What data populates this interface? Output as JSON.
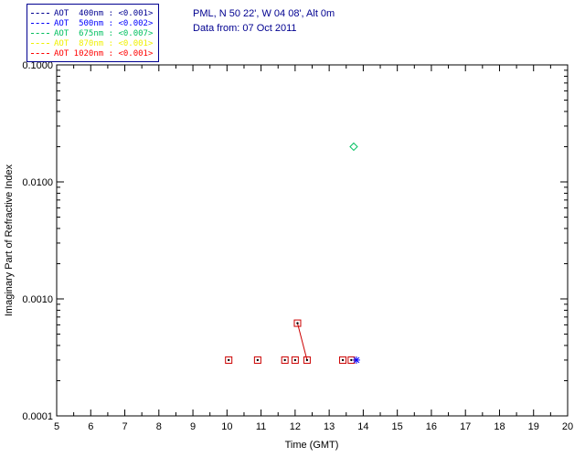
{
  "header": {
    "site_line": "PML, N 50 22', W 04 08', Alt 0m",
    "date_line": "Data from: 07 Oct 2011",
    "color": "#000090"
  },
  "legend": {
    "border_color": "#000090",
    "entries": [
      {
        "label": "AOT  400nm : <0.001>",
        "color": "#000090"
      },
      {
        "label": "AOT  500nm : <0.002>",
        "color": "#0000FF"
      },
      {
        "label": "AOT  675nm : <0.007>",
        "color": "#00C060"
      },
      {
        "label": "AOT  870nm : <0.001>",
        "color": "#F0F000"
      },
      {
        "label": "AOT 1020nm : <0.001>",
        "color": "#FF0000"
      }
    ]
  },
  "chart_data": {
    "type": "scatter",
    "title": "",
    "xlabel": "Time (GMT)",
    "ylabel": "Imaginary Part of Refractive Index",
    "x_range": [
      5,
      20
    ],
    "x_ticks": [
      5,
      6,
      7,
      8,
      9,
      10,
      11,
      12,
      13,
      14,
      15,
      16,
      17,
      18,
      19,
      20
    ],
    "y_scale": "log",
    "y_range": [
      0.0001,
      0.1
    ],
    "y_ticks": [
      {
        "value": 0.1,
        "label": "0.1000"
      },
      {
        "value": 0.01,
        "label": "0.0100"
      },
      {
        "value": 0.001,
        "label": "0.0010"
      },
      {
        "value": 0.0001,
        "label": "0.0001"
      }
    ],
    "grid": false,
    "legend_position": "top-left-outside",
    "series": [
      {
        "name": "refractive-index-squares",
        "marker": "square-dot",
        "color": "#CC0000",
        "points": [
          [
            10.05,
            0.0003
          ],
          [
            10.9,
            0.0003
          ],
          [
            11.7,
            0.0003
          ],
          [
            12.0,
            0.0003
          ],
          [
            12.07,
            0.00062
          ],
          [
            12.35,
            0.0003
          ],
          [
            13.4,
            0.0003
          ],
          [
            13.65,
            0.0003
          ]
        ]
      },
      {
        "name": "refractive-index-asterisk",
        "marker": "asterisk",
        "color": "#0000FF",
        "points": [
          [
            13.8,
            0.0003
          ]
        ]
      },
      {
        "name": "refractive-index-diamond",
        "marker": "diamond",
        "color": "#00C060",
        "points": [
          [
            13.72,
            0.02
          ]
        ]
      }
    ],
    "line_segments": [
      {
        "color": "#CC0000",
        "from": [
          12.07,
          0.00062
        ],
        "to": [
          12.35,
          0.0003
        ]
      }
    ]
  }
}
